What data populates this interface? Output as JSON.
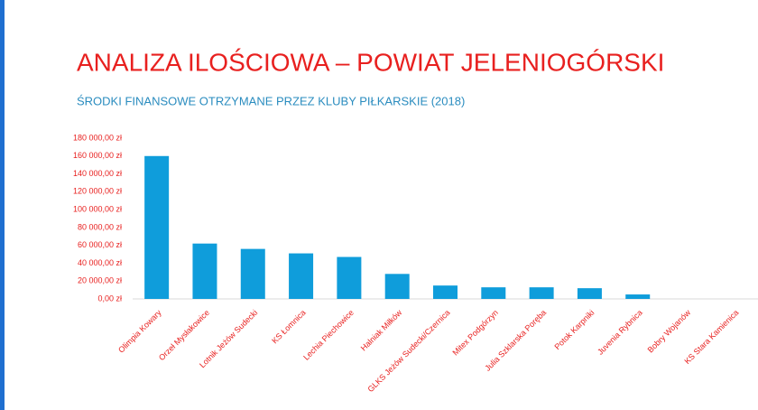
{
  "chart_data": {
    "type": "bar",
    "title": "ANALIZA ILOŚCIOWA – POWIAT JELENIOGÓRSKI",
    "subtitle": "ŚRODKI FINANSOWE OTRZYMANE PRZEZ KLUBY PIŁKARSKIE (2018)",
    "categories": [
      "Olimpia Kowary",
      "Orzeł Mysłakowice",
      "Lotnik Jeżów Sudecki",
      "KS Łomnica",
      "Lechia Piechowice",
      "Halniak Miłków",
      "GLKS Jeżów Sudecki/Czernica",
      "Mitex Podgórzyn",
      "Julia Szklarska Poręba",
      "Potok Karpniki",
      "Juvenia Rybnica",
      "Bobry Wojanów",
      "KS Stara Kamienica"
    ],
    "values": [
      160000,
      62000,
      56000,
      51000,
      47000,
      28000,
      15000,
      13000,
      13000,
      12000,
      5000,
      0,
      0
    ],
    "color": "#0f9ddb",
    "ylim": [
      0,
      180000
    ],
    "yticks": [
      {
        "value": 0,
        "label": "0,00 zł"
      },
      {
        "value": 20000,
        "label": "20 000,00 zł"
      },
      {
        "value": 40000,
        "label": "40 000,00 zł"
      },
      {
        "value": 60000,
        "label": "60 000,00 zł"
      },
      {
        "value": 80000,
        "label": "80 000,00 zł"
      },
      {
        "value": 100000,
        "label": "100 000,00 zł"
      },
      {
        "value": 120000,
        "label": "120 000,00 zł"
      },
      {
        "value": 140000,
        "label": "140 000,00 zł"
      },
      {
        "value": 160000,
        "label": "160 000,00 zł"
      },
      {
        "value": 180000,
        "label": "180 000,00 zł"
      }
    ],
    "grid": false
  }
}
